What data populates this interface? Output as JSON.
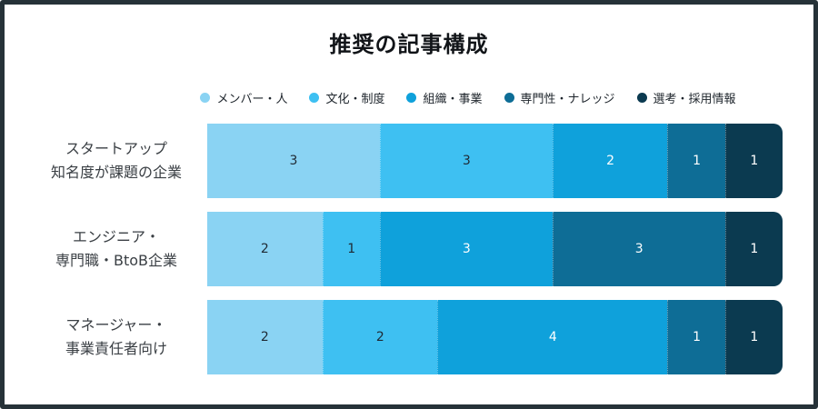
{
  "title": "推奨の記事構成",
  "frame": {
    "border_color": "#263238",
    "background": "#FFFFFF"
  },
  "legend": {
    "items": [
      {
        "label": "メンバー・人",
        "color": "#8AD3F3",
        "value_text_color": "#1F2933"
      },
      {
        "label": "文化・制度",
        "color": "#3EC0F2",
        "value_text_color": "#1F2933"
      },
      {
        "label": "組織・事業",
        "color": "#0FA1DB",
        "value_text_color": "#FFFFFF"
      },
      {
        "label": "専門性・ナレッジ",
        "color": "#0E6D96",
        "value_text_color": "#FFFFFF"
      },
      {
        "label": "選考・採用情報",
        "color": "#0B3A50",
        "value_text_color": "#FFFFFF"
      }
    ]
  },
  "chart_data": {
    "type": "bar",
    "orientation": "horizontal",
    "stacked": true,
    "title": "推奨の記事構成",
    "categories": [
      [
        "スタートアップ",
        "知名度が課題の企業"
      ],
      [
        "エンジニア・",
        "専門職・BtoB企業"
      ],
      [
        "マネージャー・",
        "事業責任者向け"
      ]
    ],
    "series": [
      {
        "name": "メンバー・人",
        "values": [
          3,
          2,
          2
        ]
      },
      {
        "name": "文化・制度",
        "values": [
          3,
          1,
          2
        ]
      },
      {
        "name": "組織・事業",
        "values": [
          2,
          3,
          4
        ]
      },
      {
        "name": "専門性・ナレッジ",
        "values": [
          1,
          3,
          1
        ]
      },
      {
        "name": "選考・採用情報",
        "values": [
          1,
          1,
          1
        ]
      }
    ],
    "row_totals": [
      10,
      10,
      10
    ],
    "xlim": [
      0,
      10
    ],
    "legend_position": "top",
    "value_labels": true,
    "grid": false
  }
}
